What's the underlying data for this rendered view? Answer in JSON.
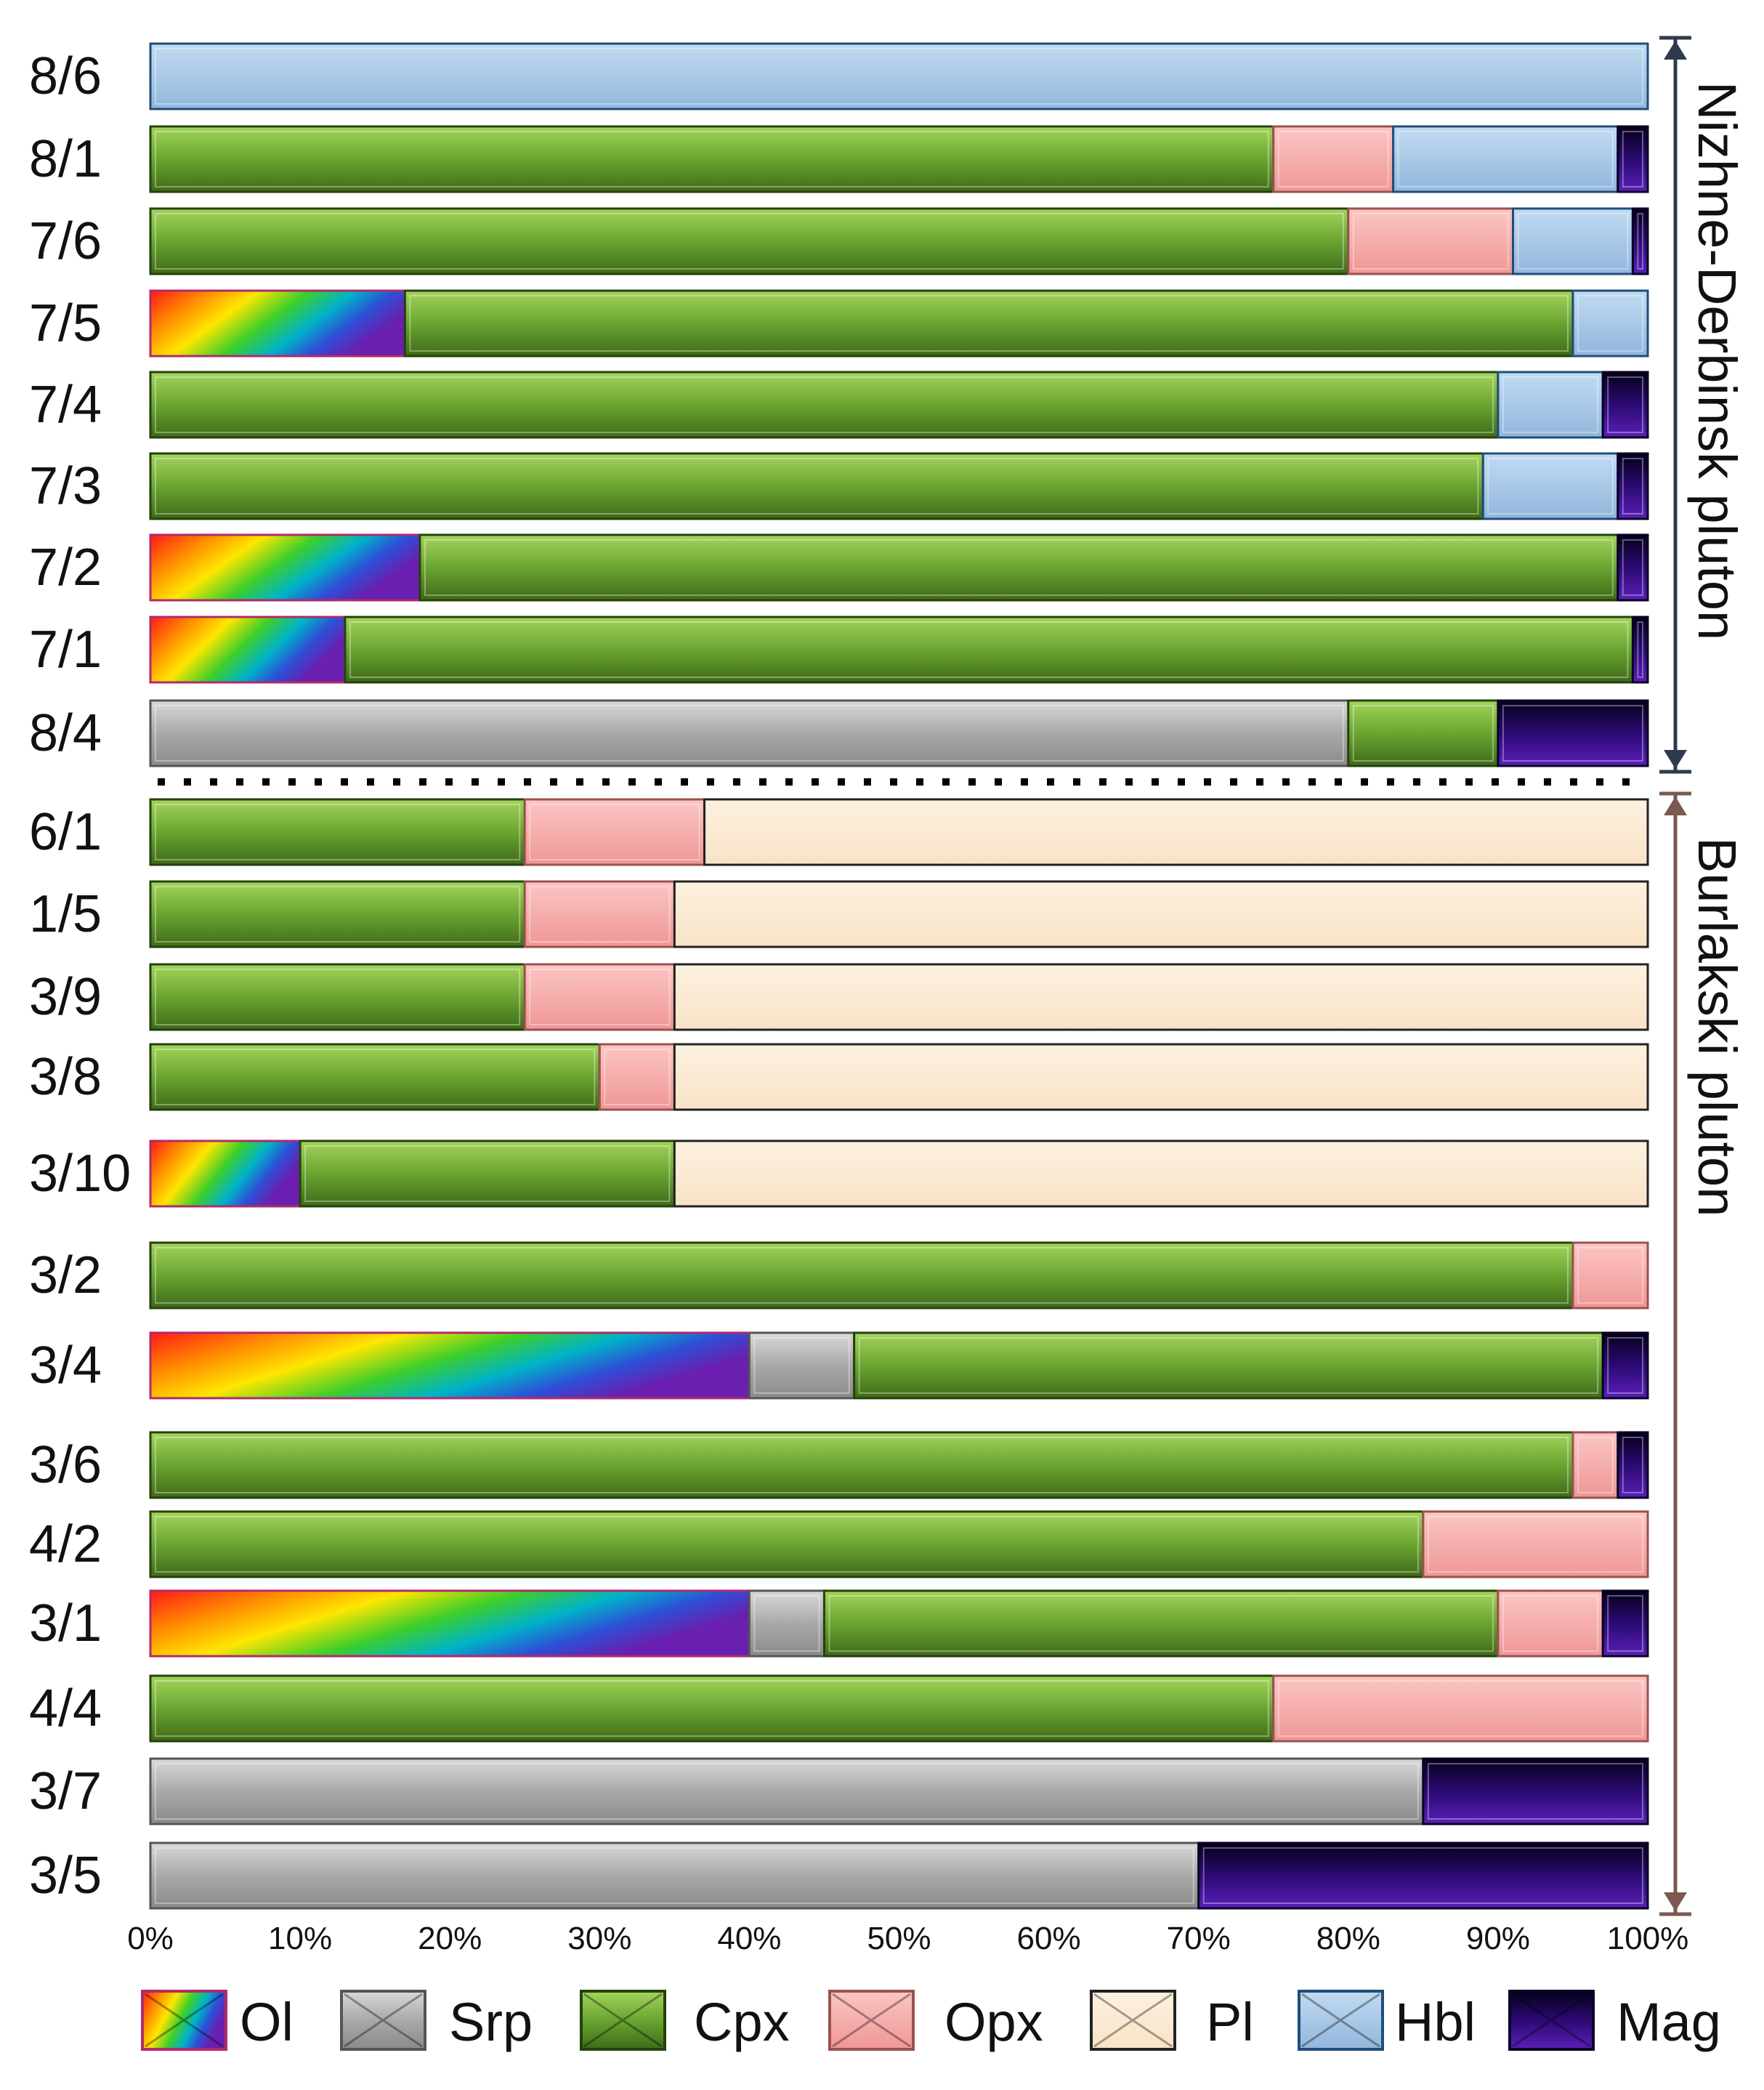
{
  "chart_data": {
    "type": "bar",
    "orientation": "horizontal",
    "stacked": true,
    "normalized": true,
    "title": "",
    "xlabel": "",
    "ylabel": "",
    "xlim": [
      0,
      100
    ],
    "xticks": [
      "0%",
      "10%",
      "20%",
      "30%",
      "40%",
      "50%",
      "60%",
      "70%",
      "80%",
      "90%",
      "100%"
    ],
    "series_names": [
      "Ol",
      "Srp",
      "Cpx",
      "Opx",
      "Pl",
      "Hbl",
      "Mag"
    ],
    "colors": {
      "Ol": "#ffd21a",
      "Srp": "#a9a9a9",
      "Cpx": "#6aa531",
      "Opx": "#f4aaa8",
      "Pl": "#fcebd4",
      "Hbl": "#a9c9e8",
      "Mag": "#2b0a73"
    },
    "samples": [
      {
        "label": "8/6",
        "group": "Nizhne-Derbinsk pluton",
        "values": {
          "Hbl": 100
        }
      },
      {
        "label": "8/1",
        "group": "Nizhne-Derbinsk pluton",
        "values": {
          "Cpx": 75,
          "Opx": 8,
          "Mag": 2,
          "Hbl": 15
        }
      },
      {
        "label": "7/6",
        "group": "Nizhne-Derbinsk pluton",
        "values": {
          "Cpx": 80,
          "Opx": 11,
          "Mag": 1,
          "Hbl": 8
        }
      },
      {
        "label": "7/5",
        "group": "Nizhne-Derbinsk pluton",
        "values": {
          "Ol": 17,
          "Cpx": 78,
          "Hbl": 5
        }
      },
      {
        "label": "7/4",
        "group": "Nizhne-Derbinsk pluton",
        "values": {
          "Cpx": 90,
          "Mag": 3,
          "Hbl": 7
        }
      },
      {
        "label": "7/3",
        "group": "Nizhne-Derbinsk pluton",
        "values": {
          "Cpx": 89,
          "Mag": 2,
          "Hbl": 9
        }
      },
      {
        "label": "7/2",
        "group": "Nizhne-Derbinsk pluton",
        "values": {
          "Ol": 18,
          "Cpx": 80,
          "Mag": 2
        }
      },
      {
        "label": "7/1",
        "group": "Nizhne-Derbinsk pluton",
        "values": {
          "Ol": 13,
          "Cpx": 86,
          "Mag": 1
        }
      },
      {
        "label": "8/4",
        "group": "Nizhne-Derbinsk pluton",
        "values": {
          "Srp": 80,
          "Cpx": 10,
          "Mag": 10
        }
      },
      {
        "label": "6/1",
        "group": "Burlakski pluton",
        "values": {
          "Cpx": 25,
          "Opx": 12,
          "Pl": 63
        }
      },
      {
        "label": "1/5",
        "group": "Burlakski pluton",
        "values": {
          "Cpx": 25,
          "Opx": 10,
          "Pl": 65
        }
      },
      {
        "label": "3/9",
        "group": "Burlakski pluton",
        "values": {
          "Cpx": 25,
          "Opx": 10,
          "Pl": 65
        }
      },
      {
        "label": "3/8",
        "group": "Burlakski pluton",
        "values": {
          "Cpx": 30,
          "Opx": 5,
          "Pl": 65
        }
      },
      {
        "label": "3/10",
        "group": "Burlakski pluton",
        "values": {
          "Ol": 10,
          "Cpx": 25,
          "Pl": 65
        }
      },
      {
        "label": "3/2",
        "group": "Burlakski pluton",
        "values": {
          "Cpx": 95,
          "Opx": 5
        }
      },
      {
        "label": "3/4",
        "group": "Burlakski pluton",
        "values": {
          "Ol": 40,
          "Srp": 7,
          "Cpx": 50,
          "Mag": 3
        }
      },
      {
        "label": "3/6",
        "group": "Burlakski pluton",
        "values": {
          "Cpx": 95,
          "Opx": 3,
          "Mag": 2
        }
      },
      {
        "label": "4/2",
        "group": "Burlakski pluton",
        "values": {
          "Cpx": 85,
          "Opx": 15
        }
      },
      {
        "label": "3/1",
        "group": "Burlakski pluton",
        "values": {
          "Ol": 40,
          "Srp": 5,
          "Cpx": 45,
          "Opx": 7,
          "Mag": 3
        }
      },
      {
        "label": "4/4",
        "group": "Burlakski pluton",
        "values": {
          "Cpx": 75,
          "Opx": 25
        }
      },
      {
        "label": "3/7",
        "group": "Burlakski pluton",
        "values": {
          "Srp": 85,
          "Mag": 15
        }
      },
      {
        "label": "3/5",
        "group": "Burlakski pluton",
        "values": {
          "Srp": 70,
          "Mag": 30
        }
      }
    ],
    "groups": [
      {
        "name": "Nizhne-Derbinsk pluton",
        "from": "8/6",
        "to": "8/4"
      },
      {
        "name": "Burlakski pluton",
        "from": "6/1",
        "to": "3/5"
      }
    ],
    "group_separator": "dotted-line",
    "legend": {
      "position": "bottom",
      "entries": [
        "Ol",
        "Srp",
        "Cpx",
        "Opx",
        "Pl",
        "Hbl",
        "Mag"
      ]
    }
  }
}
